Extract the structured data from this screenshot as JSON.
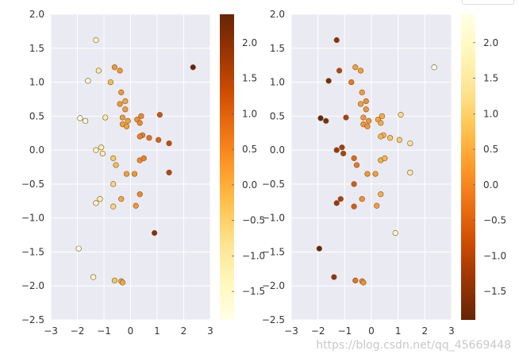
{
  "watermark": "https://blog.csdn.net/qq_45669448",
  "chart_data": [
    {
      "type": "scatter",
      "title": "",
      "xlabel": "",
      "ylabel": "",
      "xlim": [
        -3,
        3
      ],
      "ylim": [
        -2.5,
        2
      ],
      "xticks": [
        -3,
        -2,
        -1,
        0,
        1,
        2,
        3
      ],
      "yticks": [
        -2.5,
        -2,
        -1.5,
        -1,
        -0.5,
        0,
        0.5,
        1,
        1.5,
        2
      ],
      "colormap": "YlOrBr",
      "colorbar": {
        "ticks": [
          2.0,
          1.5,
          1.0,
          0.5,
          0.0,
          -0.5,
          -1.0,
          -1.5
        ],
        "range": [
          -1.9,
          2.4
        ],
        "reversed": false
      },
      "grid": true,
      "points": [
        {
          "x": -1.3,
          "y": 1.62,
          "c": -1.5
        },
        {
          "x": -0.6,
          "y": 1.22,
          "c": 0.3
        },
        {
          "x": -0.4,
          "y": 1.17,
          "c": 0.3
        },
        {
          "x": -1.2,
          "y": 1.17,
          "c": -1.0
        },
        {
          "x": -1.6,
          "y": 1.02,
          "c": -1.7
        },
        {
          "x": -0.75,
          "y": 1.0,
          "c": -0.2
        },
        {
          "x": -0.35,
          "y": 0.85,
          "c": 0.3
        },
        {
          "x": -0.2,
          "y": 0.72,
          "c": 0.1
        },
        {
          "x": -0.4,
          "y": 0.68,
          "c": 0.3
        },
        {
          "x": -0.2,
          "y": 0.6,
          "c": 0.2
        },
        {
          "x": -1.9,
          "y": 0.47,
          "c": -1.9
        },
        {
          "x": -1.7,
          "y": 0.43,
          "c": -1.6
        },
        {
          "x": -0.95,
          "y": 0.48,
          "c": -1.1
        },
        {
          "x": -0.3,
          "y": 0.48,
          "c": 0.2
        },
        {
          "x": -0.1,
          "y": 0.43,
          "c": 0.2
        },
        {
          "x": -0.3,
          "y": 0.38,
          "c": 0.2
        },
        {
          "x": -0.15,
          "y": 0.35,
          "c": 0.2
        },
        {
          "x": 0.25,
          "y": 0.45,
          "c": 0.4
        },
        {
          "x": 0.4,
          "y": 0.5,
          "c": 0.5
        },
        {
          "x": 0.35,
          "y": 0.4,
          "c": 0.5
        },
        {
          "x": 1.1,
          "y": 0.52,
          "c": 1.2
        },
        {
          "x": 0.45,
          "y": 0.22,
          "c": 0.6
        },
        {
          "x": 0.35,
          "y": 0.2,
          "c": 0.6
        },
        {
          "x": 0.7,
          "y": 0.18,
          "c": 0.8
        },
        {
          "x": 1.05,
          "y": 0.15,
          "c": 1.0
        },
        {
          "x": 1.45,
          "y": 0.1,
          "c": 1.4
        },
        {
          "x": -1.1,
          "y": 0.04,
          "c": -1.2
        },
        {
          "x": -1.3,
          "y": 0.0,
          "c": -1.3
        },
        {
          "x": -1.05,
          "y": -0.05,
          "c": -1.1
        },
        {
          "x": -0.65,
          "y": -0.12,
          "c": -0.4
        },
        {
          "x": -0.55,
          "y": -0.22,
          "c": -0.2
        },
        {
          "x": 0.35,
          "y": -0.15,
          "c": 0.5
        },
        {
          "x": 0.5,
          "y": -0.12,
          "c": 0.6
        },
        {
          "x": 1.45,
          "y": -0.33,
          "c": 1.5
        },
        {
          "x": -0.15,
          "y": -0.35,
          "c": 0.2
        },
        {
          "x": 0.15,
          "y": -0.35,
          "c": 0.3
        },
        {
          "x": -0.65,
          "y": -0.5,
          "c": -0.6
        },
        {
          "x": 0.35,
          "y": -0.65,
          "c": 0.5
        },
        {
          "x": -1.15,
          "y": -0.72,
          "c": -1.1
        },
        {
          "x": -0.35,
          "y": -0.72,
          "c": 0.1
        },
        {
          "x": -1.3,
          "y": -0.78,
          "c": -1.3
        },
        {
          "x": -0.65,
          "y": -0.83,
          "c": -0.6
        },
        {
          "x": 0.2,
          "y": -0.82,
          "c": 0.3
        },
        {
          "x": 0.9,
          "y": -1.22,
          "c": 2.0
        },
        {
          "x": -1.95,
          "y": -1.45,
          "c": -1.9
        },
        {
          "x": -1.4,
          "y": -1.87,
          "c": -1.4
        },
        {
          "x": -0.6,
          "y": -1.92,
          "c": -0.3
        },
        {
          "x": -0.35,
          "y": -1.93,
          "c": 0.1
        },
        {
          "x": -0.3,
          "y": -1.95,
          "c": 0.1
        },
        {
          "x": 2.35,
          "y": 1.22,
          "c": 2.4
        }
      ]
    },
    {
      "type": "scatter",
      "title": "",
      "xlabel": "",
      "ylabel": "",
      "xlim": [
        -3,
        3
      ],
      "ylim": [
        -2.5,
        2
      ],
      "xticks": [
        -3,
        -2,
        -1,
        0,
        1,
        2,
        3
      ],
      "yticks": [
        -2.5,
        -2,
        -1.5,
        -1,
        -0.5,
        0,
        0.5,
        1,
        1.5,
        2
      ],
      "colormap": "YlOrBr_r",
      "colorbar": {
        "ticks": [
          2.0,
          1.5,
          1.0,
          0.5,
          0.0,
          -0.5,
          -1.0,
          -1.5
        ],
        "range": [
          -1.9,
          2.4
        ],
        "reversed": true
      },
      "grid": true,
      "points": "same as first panel (color values reversed colormap)"
    }
  ]
}
